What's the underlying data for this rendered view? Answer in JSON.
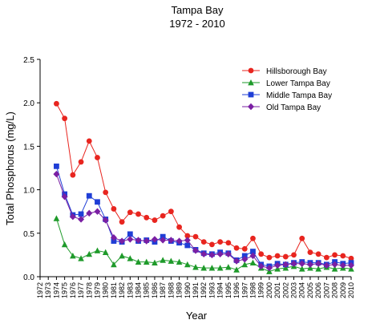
{
  "chart_data": {
    "type": "line",
    "title": "Tampa Bay",
    "subtitle": "1972 - 2010",
    "xlabel": "Year",
    "ylabel": "Total Phosphorus (mg/L)",
    "ylim": [
      0,
      2.5
    ],
    "yticks": [
      "0.0",
      "0.5",
      "1.0",
      "1.5",
      "2.0",
      "2.5"
    ],
    "x": [
      1972,
      1973,
      1974,
      1975,
      1976,
      1977,
      1978,
      1979,
      1980,
      1981,
      1982,
      1983,
      1984,
      1985,
      1986,
      1987,
      1988,
      1989,
      1990,
      1991,
      1992,
      1993,
      1994,
      1995,
      1996,
      1997,
      1998,
      1999,
      2000,
      2001,
      2002,
      2003,
      2004,
      2005,
      2006,
      2007,
      2008,
      2009,
      2010
    ],
    "xtick_labels": [
      "1972",
      "1973",
      "1974",
      "1975",
      "1976",
      "1977",
      "1978",
      "1979",
      "1980",
      "1981",
      "1982",
      "1983",
      "1984",
      "1985",
      "1986",
      "1987",
      "1988",
      "1989",
      "1990",
      "1991",
      "1992",
      "1993",
      "1994",
      "1995",
      "1996",
      "1997",
      "1998",
      "1999",
      "2000",
      "2001",
      "2002",
      "2003",
      "2004",
      "2005",
      "2006",
      "2007",
      "2008",
      "2009",
      "2010"
    ],
    "grid": false,
    "legend_position": "top-right",
    "series": [
      {
        "name": "Hillsborough Bay",
        "color": "#e8251f",
        "marker": "circle",
        "x": [
          1974,
          1975,
          1976,
          1977,
          1978,
          1979,
          1980,
          1981,
          1982,
          1983,
          1984,
          1985,
          1986,
          1987,
          1988,
          1989,
          1990,
          1991,
          1992,
          1993,
          1994,
          1995,
          1996,
          1997,
          1998,
          1999,
          2000,
          2001,
          2002,
          2003,
          2004,
          2005,
          2006,
          2007,
          2008,
          2009,
          2010
        ],
        "values": [
          1.99,
          1.82,
          1.17,
          1.32,
          1.56,
          1.37,
          0.97,
          0.78,
          0.63,
          0.74,
          0.72,
          0.68,
          0.65,
          0.7,
          0.75,
          0.57,
          0.47,
          0.46,
          0.4,
          0.37,
          0.4,
          0.39,
          0.33,
          0.32,
          0.44,
          0.26,
          0.22,
          0.24,
          0.23,
          0.25,
          0.44,
          0.28,
          0.26,
          0.22,
          0.25,
          0.24,
          0.21
        ]
      },
      {
        "name": "Lower Tampa Bay",
        "color": "#1e9a2a",
        "marker": "triangle",
        "x": [
          1974,
          1975,
          1976,
          1977,
          1978,
          1979,
          1980,
          1981,
          1982,
          1983,
          1984,
          1985,
          1986,
          1987,
          1988,
          1989,
          1990,
          1991,
          1992,
          1993,
          1994,
          1995,
          1996,
          1997,
          1998,
          1999,
          2000,
          2001,
          2002,
          2003,
          2004,
          2005,
          2006,
          2007,
          2008,
          2009,
          2010
        ],
        "values": [
          0.67,
          0.37,
          0.24,
          0.21,
          0.26,
          0.3,
          0.28,
          0.14,
          0.24,
          0.21,
          0.17,
          0.17,
          0.16,
          0.19,
          0.18,
          0.17,
          0.14,
          0.11,
          0.1,
          0.1,
          0.1,
          0.11,
          0.08,
          0.14,
          0.16,
          0.1,
          0.06,
          0.09,
          0.1,
          0.12,
          0.09,
          0.1,
          0.09,
          0.11,
          0.09,
          0.1,
          0.09
        ]
      },
      {
        "name": "Middle Tampa Bay",
        "color": "#1f3ed6",
        "marker": "square",
        "x": [
          1974,
          1975,
          1976,
          1977,
          1978,
          1979,
          1980,
          1981,
          1982,
          1983,
          1984,
          1985,
          1986,
          1987,
          1988,
          1989,
          1990,
          1991,
          1992,
          1993,
          1994,
          1995,
          1996,
          1997,
          1998,
          1999,
          2000,
          2001,
          2002,
          2003,
          2004,
          2005,
          2006,
          2007,
          2008,
          2009,
          2010
        ],
        "values": [
          1.27,
          0.95,
          0.71,
          0.72,
          0.93,
          0.86,
          0.66,
          0.41,
          0.4,
          0.49,
          0.41,
          0.42,
          0.4,
          0.46,
          0.41,
          0.39,
          0.36,
          0.31,
          0.27,
          0.26,
          0.28,
          0.27,
          0.19,
          0.24,
          0.29,
          0.14,
          0.12,
          0.15,
          0.14,
          0.16,
          0.17,
          0.16,
          0.16,
          0.14,
          0.17,
          0.15,
          0.16
        ]
      },
      {
        "name": "Old Tampa Bay",
        "color": "#7a1fa3",
        "marker": "diamond",
        "x": [
          1974,
          1975,
          1976,
          1977,
          1978,
          1979,
          1980,
          1981,
          1982,
          1983,
          1984,
          1985,
          1986,
          1987,
          1988,
          1989,
          1990,
          1991,
          1992,
          1993,
          1994,
          1995,
          1996,
          1997,
          1998,
          1999,
          2000,
          2001,
          2002,
          2003,
          2004,
          2005,
          2006,
          2007,
          2008,
          2009,
          2010
        ],
        "values": [
          1.18,
          0.92,
          0.69,
          0.66,
          0.73,
          0.75,
          0.65,
          0.45,
          0.41,
          0.43,
          0.42,
          0.41,
          0.43,
          0.42,
          0.42,
          0.41,
          0.42,
          0.3,
          0.26,
          0.25,
          0.26,
          0.26,
          0.18,
          0.2,
          0.24,
          0.12,
          0.1,
          0.13,
          0.14,
          0.15,
          0.15,
          0.14,
          0.15,
          0.13,
          0.14,
          0.13,
          0.13
        ]
      }
    ]
  }
}
